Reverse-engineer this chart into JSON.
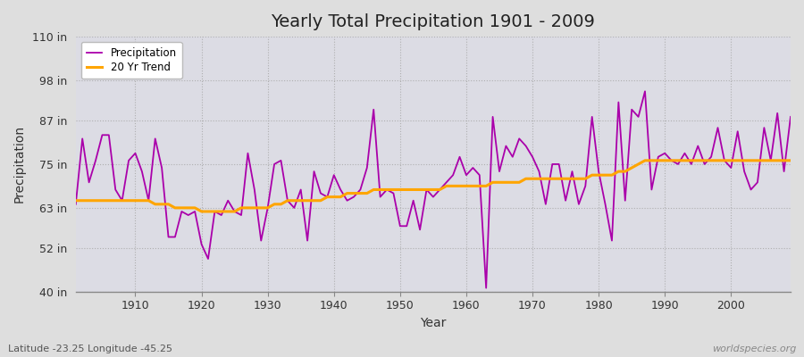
{
  "title": "Yearly Total Precipitation 1901 - 2009",
  "xlabel": "Year",
  "ylabel": "Precipitation",
  "subtitle": "Latitude -23.25 Longitude -45.25",
  "watermark": "worldspecies.org",
  "ylim": [
    40,
    110
  ],
  "yticks": [
    40,
    52,
    63,
    75,
    87,
    98,
    110
  ],
  "ytick_labels": [
    "40 in",
    "52 in",
    "63 in",
    "75 in",
    "87 in",
    "98 in",
    "110 in"
  ],
  "xlim": [
    1901,
    2009
  ],
  "precipitation_color": "#aa00aa",
  "trend_color": "#FFA500",
  "bg_color": "#EAEAEA",
  "plot_bg_color": "#E0E0E8",
  "years": [
    1901,
    1902,
    1903,
    1904,
    1905,
    1906,
    1907,
    1908,
    1909,
    1910,
    1911,
    1912,
    1913,
    1914,
    1915,
    1916,
    1917,
    1918,
    1919,
    1920,
    1921,
    1922,
    1923,
    1924,
    1925,
    1926,
    1927,
    1928,
    1929,
    1930,
    1931,
    1932,
    1933,
    1934,
    1935,
    1936,
    1937,
    1938,
    1939,
    1940,
    1941,
    1942,
    1943,
    1944,
    1945,
    1946,
    1947,
    1948,
    1949,
    1950,
    1951,
    1952,
    1953,
    1954,
    1955,
    1956,
    1957,
    1958,
    1959,
    1960,
    1961,
    1962,
    1963,
    1964,
    1965,
    1966,
    1967,
    1968,
    1969,
    1970,
    1971,
    1972,
    1973,
    1974,
    1975,
    1976,
    1977,
    1978,
    1979,
    1980,
    1981,
    1982,
    1983,
    1984,
    1985,
    1986,
    1987,
    1988,
    1989,
    1990,
    1991,
    1992,
    1993,
    1994,
    1995,
    1996,
    1997,
    1998,
    1999,
    2000,
    2001,
    2002,
    2003,
    2004,
    2005,
    2006,
    2007,
    2008,
    2009
  ],
  "precipitation": [
    64,
    82,
    70,
    76,
    83,
    83,
    68,
    65,
    76,
    78,
    73,
    65,
    82,
    74,
    55,
    55,
    62,
    61,
    62,
    53,
    49,
    62,
    61,
    65,
    62,
    61,
    78,
    68,
    54,
    63,
    75,
    76,
    65,
    63,
    68,
    54,
    73,
    67,
    66,
    72,
    68,
    65,
    66,
    68,
    74,
    90,
    66,
    68,
    67,
    58,
    58,
    65,
    57,
    68,
    66,
    68,
    70,
    72,
    77,
    72,
    74,
    72,
    41,
    88,
    73,
    80,
    77,
    82,
    80,
    77,
    73,
    64,
    75,
    75,
    65,
    73,
    64,
    69,
    88,
    73,
    64,
    54,
    92,
    65,
    90,
    88,
    95,
    68,
    77,
    78,
    76,
    75,
    78,
    75,
    80,
    75,
    77,
    85,
    76,
    74,
    84,
    73,
    68,
    70,
    85,
    76,
    89,
    73,
    88
  ],
  "trend": [
    65,
    65,
    65,
    65,
    65,
    65,
    65,
    65,
    65,
    65,
    65,
    65,
    64,
    64,
    64,
    63,
    63,
    63,
    63,
    62,
    62,
    62,
    62,
    62,
    62,
    63,
    63,
    63,
    63,
    63,
    64,
    64,
    65,
    65,
    65,
    65,
    65,
    65,
    66,
    66,
    66,
    67,
    67,
    67,
    67,
    68,
    68,
    68,
    68,
    68,
    68,
    68,
    68,
    68,
    68,
    68,
    69,
    69,
    69,
    69,
    69,
    69,
    69,
    70,
    70,
    70,
    70,
    70,
    71,
    71,
    71,
    71,
    71,
    71,
    71,
    71,
    71,
    71,
    72,
    72,
    72,
    72,
    73,
    73,
    74,
    75,
    76,
    76,
    76,
    76,
    76,
    76,
    76,
    76,
    76,
    76,
    76,
    76,
    76,
    76,
    76,
    76,
    76,
    76,
    76,
    76,
    76,
    76,
    76
  ]
}
